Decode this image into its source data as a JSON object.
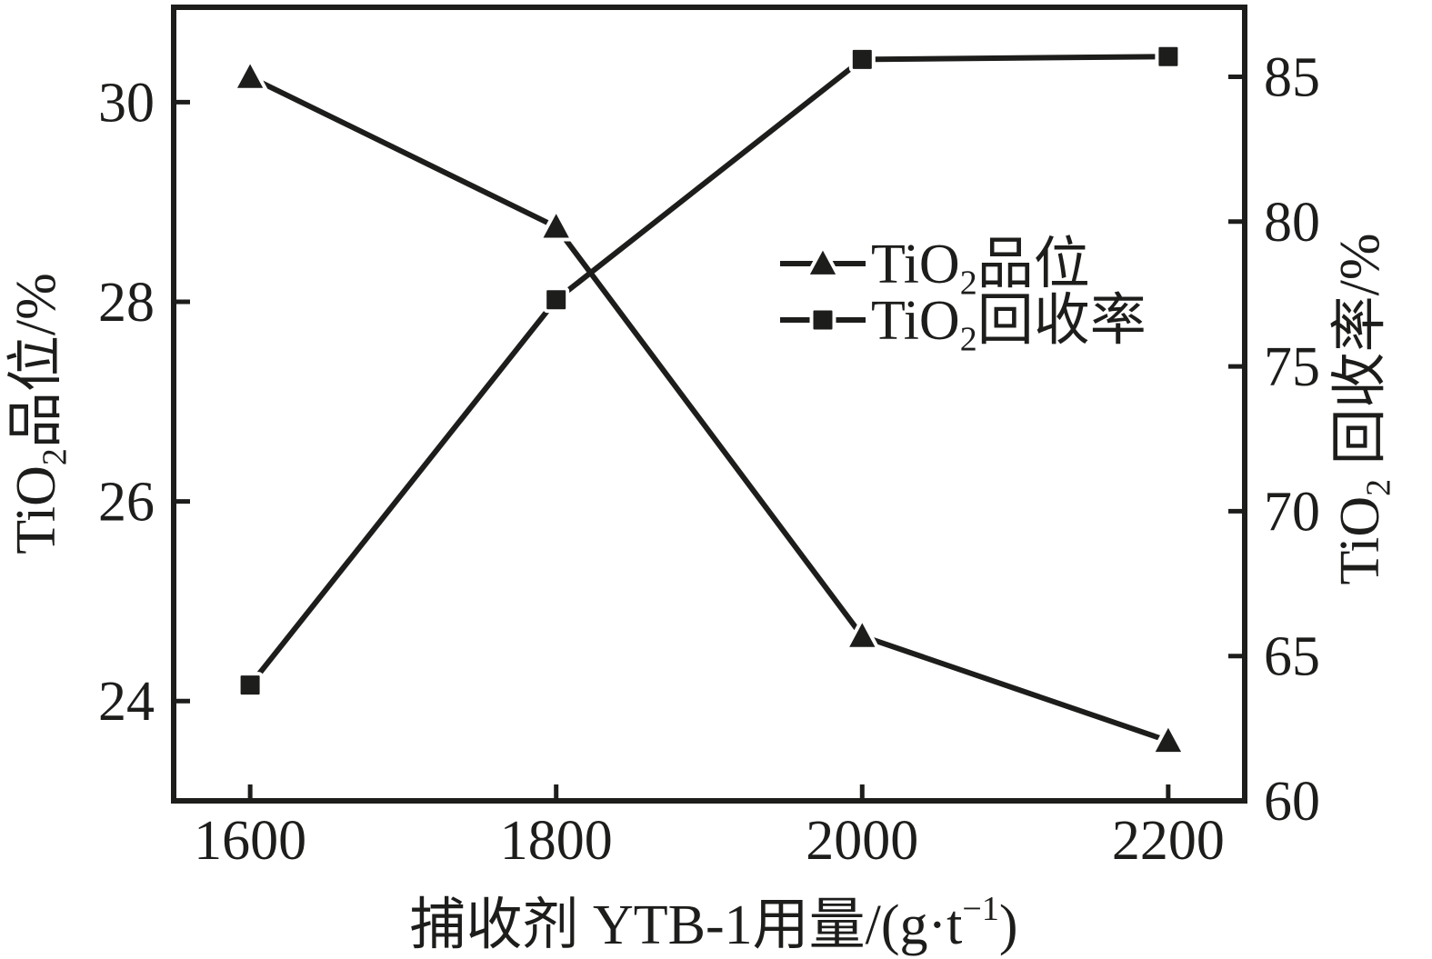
{
  "figure": {
    "background": "#ffffff",
    "ink_color": "#1d1d1b"
  },
  "chart_data": {
    "type": "line",
    "grid": false,
    "x": {
      "title_parts": [
        {
          "t": "捕收剂 YTB-1用量/(g·t"
        },
        {
          "t": "−1",
          "sup": true
        },
        {
          "t": ")"
        }
      ],
      "min": 1550,
      "max": 2250,
      "ticks": [
        1600,
        1800,
        2000,
        2200
      ]
    },
    "y_left": {
      "title_parts": [
        {
          "t": "TiO"
        },
        {
          "t": "2",
          "sub": true
        },
        {
          "t": "品位/%"
        }
      ],
      "min": 23.0,
      "max": 30.95,
      "ticks": [
        24,
        26,
        28,
        30
      ]
    },
    "y_right": {
      "title_parts": [
        {
          "t": "TiO"
        },
        {
          "t": "2",
          "sub": true
        },
        {
          "t": " 回收率/%"
        }
      ],
      "min": 60,
      "max": 87.4,
      "ticks": [
        60,
        65,
        70,
        75,
        80,
        85
      ]
    },
    "series": [
      {
        "id": "tio2-grade",
        "name_parts": [
          {
            "t": "TiO"
          },
          {
            "t": "2",
            "sub": true
          },
          {
            "t": "品位"
          }
        ],
        "axis": "left",
        "marker": "triangle",
        "x": [
          1600,
          1800,
          2000,
          2200
        ],
        "values": [
          30.25,
          28.75,
          24.65,
          23.6
        ]
      },
      {
        "id": "tio2-recovery",
        "name_parts": [
          {
            "t": "TiO"
          },
          {
            "t": "2",
            "sub": true
          },
          {
            "t": "回收率"
          }
        ],
        "axis": "right",
        "marker": "square",
        "x": [
          1600,
          1800,
          2000,
          2200
        ],
        "values": [
          64.0,
          77.3,
          85.6,
          85.7
        ]
      }
    ],
    "legend": {
      "position": "inside-upper-right"
    }
  }
}
